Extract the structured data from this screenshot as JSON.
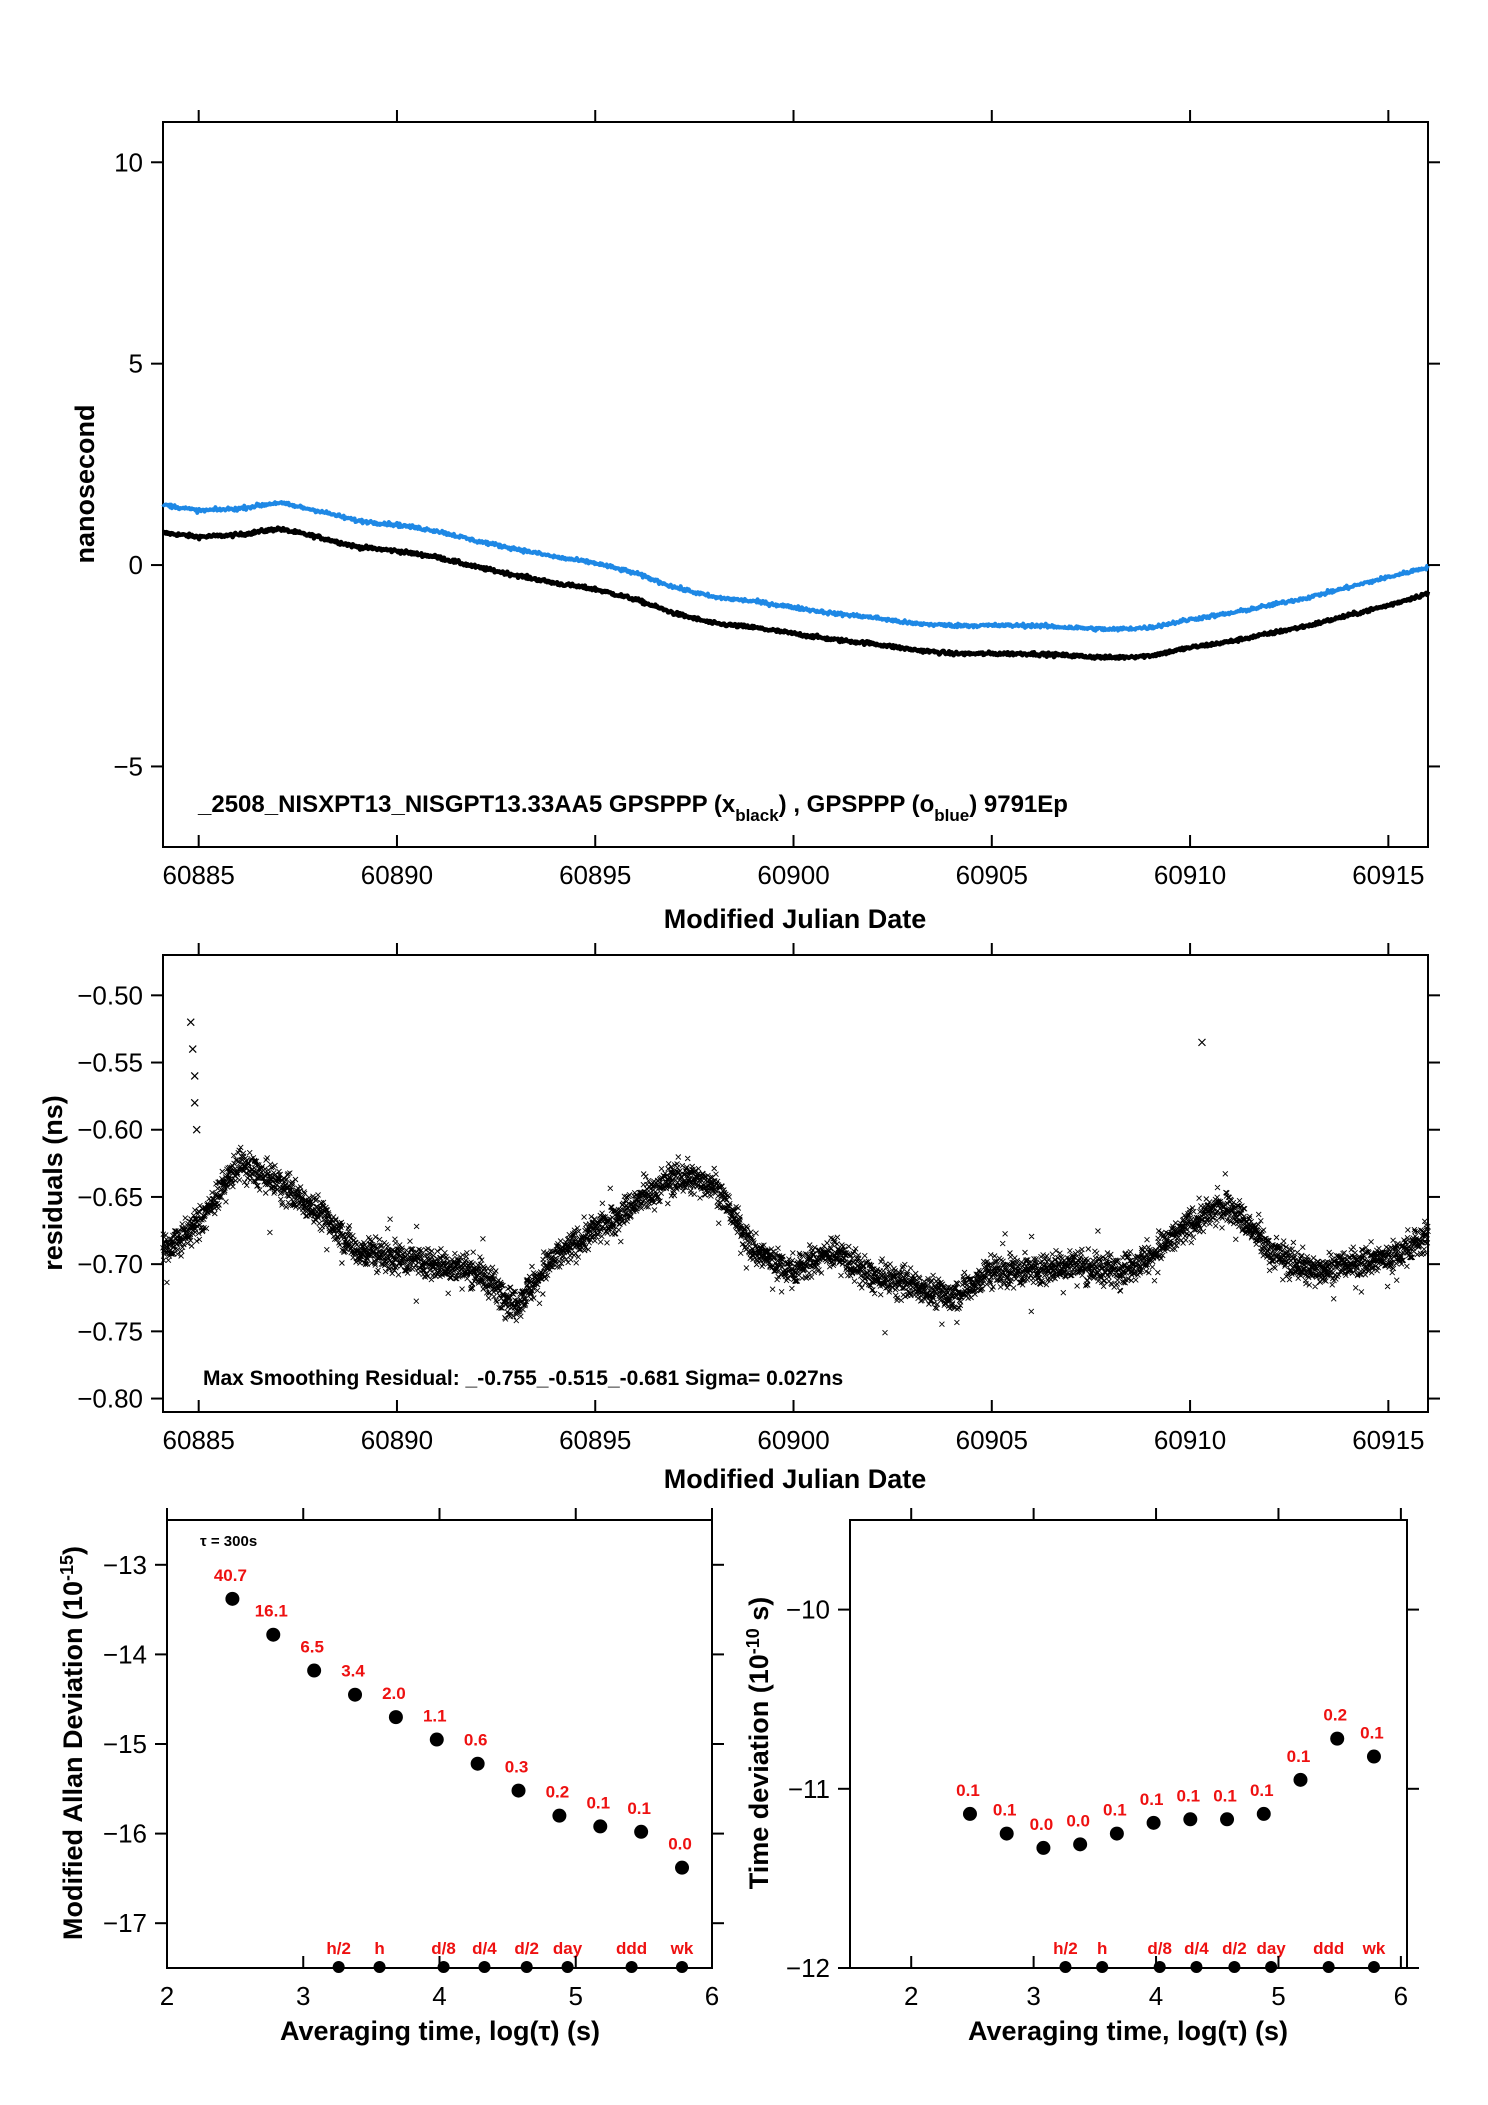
{
  "colors": {
    "black_series": "#000000",
    "blue_series": "#1e88e5",
    "label_red": "#ee1111"
  },
  "chart_data": [
    {
      "type": "line",
      "id": "phase",
      "xlabel": "Modified Julian Date",
      "ylabel": "nanosecond",
      "xlim": [
        60884.1,
        60916.0
      ],
      "ylim": [
        -7,
        11
      ],
      "xticks": [
        60885,
        60890,
        60895,
        60900,
        60905,
        60910,
        60915
      ],
      "yticks": [
        -5,
        0,
        5,
        10
      ],
      "annotation": {
        "prefix": "_2508_NISXPT13_NISGPT13.33AA5     GPSPPP (x",
        "sub1": "black",
        "mid": ") ,  GPSPPP (o",
        "sub2": "blue",
        "suffix": ")  9791Ep"
      },
      "series": [
        {
          "name": "GPSPPP (x black)",
          "color": "#000000",
          "x": [
            60884.1,
            60885,
            60886,
            60887,
            60888,
            60889,
            60890,
            60891,
            60892,
            60893,
            60894,
            60895,
            60896,
            60897,
            60898,
            60899,
            60900,
            60901,
            60902,
            60903,
            60904,
            60905,
            60906,
            60907,
            60908,
            60909,
            60910,
            60911,
            60912,
            60913,
            60914,
            60915,
            60916
          ],
          "y": [
            0.8,
            0.7,
            0.75,
            0.9,
            0.7,
            0.45,
            0.35,
            0.2,
            -0.05,
            -0.25,
            -0.45,
            -0.6,
            -0.85,
            -1.2,
            -1.45,
            -1.55,
            -1.7,
            -1.85,
            -1.95,
            -2.1,
            -2.2,
            -2.2,
            -2.2,
            -2.25,
            -2.3,
            -2.25,
            -2.05,
            -1.9,
            -1.7,
            -1.5,
            -1.25,
            -1.0,
            -0.7
          ]
        },
        {
          "name": "GPSPPP (o blue)",
          "color": "#1e88e5",
          "x": [
            60884.1,
            60885,
            60886,
            60887,
            60888,
            60889,
            60890,
            60891,
            60892,
            60893,
            60894,
            60895,
            60896,
            60897,
            60898,
            60899,
            60900,
            60901,
            60902,
            60903,
            60904,
            60905,
            60906,
            60907,
            60908,
            60909,
            60910,
            60911,
            60912,
            60913,
            60914,
            60915,
            60916
          ],
          "y": [
            1.5,
            1.35,
            1.4,
            1.55,
            1.35,
            1.1,
            1.0,
            0.85,
            0.6,
            0.4,
            0.2,
            0.05,
            -0.2,
            -0.55,
            -0.8,
            -0.9,
            -1.05,
            -1.2,
            -1.3,
            -1.45,
            -1.5,
            -1.5,
            -1.5,
            -1.55,
            -1.6,
            -1.55,
            -1.35,
            -1.2,
            -1.0,
            -0.8,
            -0.55,
            -0.3,
            -0.05
          ]
        }
      ]
    },
    {
      "type": "scatter",
      "id": "residuals",
      "xlabel": "Modified Julian Date",
      "ylabel": "residuals (ns)",
      "xlim": [
        60884.1,
        60916.0
      ],
      "ylim": [
        -0.81,
        -0.47
      ],
      "xticks": [
        60885,
        60890,
        60895,
        60900,
        60905,
        60910,
        60915
      ],
      "yticks": [
        -0.8,
        -0.75,
        -0.7,
        -0.65,
        -0.6,
        -0.55,
        -0.5
      ],
      "ytick_labels": [
        "−0.80",
        "−0.75",
        "−0.70",
        "−0.65",
        "−0.60",
        "−0.55",
        "−0.50"
      ],
      "annotation": "Max Smoothing Residual: _-0.755_-0.515_-0.681  Sigma= 0.027ns",
      "trend": {
        "x": [
          60884.1,
          60885,
          60886,
          60887,
          60888,
          60889,
          60890,
          60891,
          60892,
          60893,
          60894,
          60895,
          60896,
          60897,
          60898,
          60899,
          60900,
          60901,
          60902,
          60903,
          60904,
          60905,
          60906,
          60907,
          60908,
          60909,
          60910,
          60911,
          60912,
          60913,
          60914,
          60915,
          60916
        ],
        "y": [
          -0.69,
          -0.67,
          -0.625,
          -0.64,
          -0.66,
          -0.69,
          -0.695,
          -0.7,
          -0.705,
          -0.73,
          -0.695,
          -0.675,
          -0.655,
          -0.635,
          -0.64,
          -0.69,
          -0.705,
          -0.69,
          -0.71,
          -0.715,
          -0.725,
          -0.705,
          -0.705,
          -0.7,
          -0.705,
          -0.695,
          -0.67,
          -0.655,
          -0.69,
          -0.705,
          -0.7,
          -0.695,
          -0.68
        ]
      },
      "outliers": {
        "x": [
          60884.8,
          60884.85,
          60884.9,
          60884.9,
          60884.95,
          60910.3
        ],
        "y": [
          -0.52,
          -0.54,
          -0.56,
          -0.58,
          -0.6,
          -0.535
        ]
      }
    },
    {
      "type": "scatter",
      "id": "mdev",
      "xlabel": "Averaging time, log(τ) (s)",
      "ylabel_main": "Modified Allan Deviation (10",
      "ylabel_sup": "-15",
      "ylabel_end": ")",
      "xlim": [
        2,
        6
      ],
      "ylim": [
        -17.5,
        -12.5
      ],
      "xticks": [
        2,
        3,
        4,
        5,
        6
      ],
      "yticks": [
        -17,
        -16,
        -15,
        -14,
        -13
      ],
      "ytick_labels": [
        "−17",
        "−16",
        "−15",
        "−14",
        "−13"
      ],
      "tau_note": "τ = 300s",
      "x": [
        2.48,
        2.78,
        3.08,
        3.38,
        3.68,
        3.98,
        4.28,
        4.58,
        4.88,
        5.18,
        5.48,
        5.78
      ],
      "y": [
        -13.38,
        -13.78,
        -14.18,
        -14.45,
        -14.7,
        -14.95,
        -15.22,
        -15.52,
        -15.8,
        -15.92,
        -15.98,
        -16.38
      ],
      "point_labels": [
        "40.7",
        "16.1",
        "6.5",
        "3.4",
        "2.0",
        "1.1",
        "0.6",
        "0.3",
        "0.2",
        "0.1",
        "0.1",
        "0.0"
      ],
      "markers": {
        "labels": [
          "h/2",
          "h",
          "d/8",
          "d/4",
          "d/2",
          "day",
          "ddd",
          "wk"
        ],
        "x": [
          3.26,
          3.56,
          4.03,
          4.33,
          4.64,
          4.94,
          5.41,
          5.78
        ]
      }
    },
    {
      "type": "scatter",
      "id": "tdev",
      "xlabel": "Averaging time, log(τ) (s)",
      "ylabel_main": "Time deviation (10",
      "ylabel_sup": "-10",
      "ylabel_end": " s)",
      "xlim": [
        1.5,
        6.05
      ],
      "ylim": [
        -12,
        -9.5
      ],
      "xticks": [
        2,
        3,
        4,
        5,
        6
      ],
      "yticks": [
        -12,
        -11,
        -10
      ],
      "ytick_labels": [
        "−12",
        "−11",
        "−10"
      ],
      "x": [
        2.48,
        2.78,
        3.08,
        3.38,
        3.68,
        3.98,
        4.28,
        4.58,
        4.88,
        5.18,
        5.48,
        5.78
      ],
      "y": [
        -11.14,
        -11.25,
        -11.33,
        -11.31,
        -11.25,
        -11.19,
        -11.17,
        -11.17,
        -11.14,
        -10.95,
        -10.72,
        -10.82
      ],
      "point_labels": [
        "0.1",
        "0.1",
        "0.0",
        "0.0",
        "0.1",
        "0.1",
        "0.1",
        "0.1",
        "0.1",
        "0.1",
        "0.2",
        "0.1"
      ],
      "markers": {
        "labels": [
          "h/2",
          "h",
          "d/8",
          "d/4",
          "d/2",
          "day",
          "ddd",
          "wk"
        ],
        "x": [
          3.26,
          3.56,
          4.03,
          4.33,
          4.64,
          4.94,
          5.41,
          5.78
        ]
      }
    }
  ]
}
